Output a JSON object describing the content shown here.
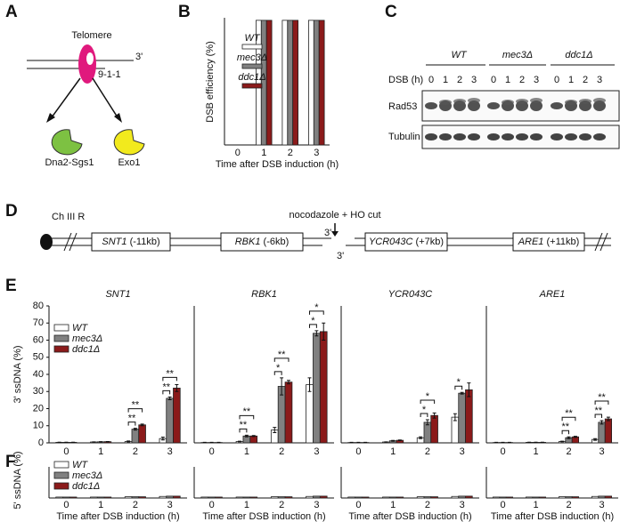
{
  "panel_labels": [
    "A",
    "B",
    "C",
    "D",
    "E",
    "F"
  ],
  "panel_a": {
    "telomere": "Telomere",
    "complex": "9-1-1",
    "end": "3'",
    "nuclease_1": "Dna2-Sgs1",
    "nuclease_2": "Exo1"
  },
  "panel_c": {
    "groups": [
      "WT",
      "mec3Δ",
      "ddc1Δ"
    ],
    "row_label": "DSB (h)",
    "lanes": [
      "0",
      "1",
      "2",
      "3",
      "0",
      "1",
      "2",
      "3",
      "0",
      "1",
      "2",
      "3"
    ],
    "blots": [
      "Rad53",
      "Tubulin"
    ]
  },
  "panel_d": {
    "chromosome": "Ch III R",
    "treatment": "nocodazole + HO cut",
    "end_left": "3'",
    "end_right": "3'",
    "genes": [
      {
        "name": "SNT1",
        "position": "(-11kb)"
      },
      {
        "name": "RBK1",
        "position": "(-6kb)"
      },
      {
        "name": "YCR043C",
        "position": "(+7kb)"
      },
      {
        "name": "ARE1",
        "position": "(+11kb)"
      }
    ]
  },
  "chart_data": [
    {
      "type": "bar",
      "ylabel": "DSB efficiency (%)",
      "xlabel": "Time after DSB induction (h)",
      "categories": [
        "0",
        "1",
        "2",
        "3"
      ],
      "ylim": [
        0,
        100
      ],
      "legend": true,
      "series": [
        {
          "name": "WT",
          "color": "#ffffff",
          "values": [
            0,
            98,
            98,
            98
          ]
        },
        {
          "name": "mec3Δ",
          "color": "#808080",
          "values": [
            0,
            98,
            98,
            98
          ]
        },
        {
          "name": "ddc1Δ",
          "color": "#8b1a1a",
          "values": [
            0,
            98,
            98,
            98
          ]
        }
      ]
    },
    {
      "type": "bar",
      "title": "SNT1",
      "ylabel": "3' ssDNA (%)",
      "categories": [
        "0",
        "1",
        "2",
        "3"
      ],
      "ylim": [
        0,
        80
      ],
      "yticks": [
        0,
        10,
        20,
        30,
        40,
        50,
        60,
        70,
        80
      ],
      "legend": true,
      "series": [
        {
          "name": "WT",
          "color": "#ffffff",
          "values": [
            0.3,
            0.5,
            0.8,
            2.5
          ],
          "errors": [
            0.1,
            0.1,
            0.3,
            0.8
          ]
        },
        {
          "name": "mec3Δ",
          "color": "#808080",
          "values": [
            0.3,
            0.6,
            8,
            26
          ],
          "errors": [
            0.1,
            0.1,
            0.5,
            0.8
          ]
        },
        {
          "name": "ddc1Δ",
          "color": "#8b1a1a",
          "values": [
            0.3,
            0.7,
            10.5,
            32
          ],
          "errors": [
            0.1,
            0.1,
            0.5,
            2
          ]
        }
      ],
      "significance": [
        {
          "category": 2,
          "from": 0,
          "to": 1,
          "label": "**"
        },
        {
          "category": 2,
          "from": 0,
          "to": 2,
          "label": "**"
        },
        {
          "category": 3,
          "from": 0,
          "to": 1,
          "label": "**"
        },
        {
          "category": 3,
          "from": 0,
          "to": 2,
          "label": "**"
        }
      ]
    },
    {
      "type": "bar",
      "title": "RBK1",
      "categories": [
        "0",
        "1",
        "2",
        "3"
      ],
      "ylim": [
        0,
        80
      ],
      "series": [
        {
          "color": "#ffffff",
          "values": [
            0.2,
            0.8,
            7.5,
            34
          ],
          "errors": [
            0.1,
            0.2,
            1.5,
            4
          ]
        },
        {
          "color": "#808080",
          "values": [
            0.2,
            4,
            33,
            64
          ],
          "errors": [
            0.1,
            0.5,
            5,
            1.5
          ]
        },
        {
          "color": "#8b1a1a",
          "values": [
            0.2,
            4,
            35.5,
            65
          ],
          "errors": [
            0.1,
            0.3,
            1,
            5
          ]
        }
      ],
      "significance": [
        {
          "category": 1,
          "from": 0,
          "to": 1,
          "label": "**"
        },
        {
          "category": 1,
          "from": 0,
          "to": 2,
          "label": "**"
        },
        {
          "category": 2,
          "from": 0,
          "to": 1,
          "label": "*"
        },
        {
          "category": 2,
          "from": 0,
          "to": 2,
          "label": "**"
        },
        {
          "category": 3,
          "from": 0,
          "to": 1,
          "label": "*"
        },
        {
          "category": 3,
          "from": 0,
          "to": 2,
          "label": "*"
        }
      ]
    },
    {
      "type": "bar",
      "title": "YCR043C",
      "categories": [
        "0",
        "1",
        "2",
        "3"
      ],
      "ylim": [
        0,
        80
      ],
      "series": [
        {
          "color": "#ffffff",
          "values": [
            0.2,
            0.5,
            3,
            15
          ],
          "errors": [
            0.1,
            0.1,
            0.5,
            2
          ]
        },
        {
          "color": "#808080",
          "values": [
            0.2,
            1.2,
            12,
            29
          ],
          "errors": [
            0.1,
            0.2,
            1.5,
            0.5
          ]
        },
        {
          "color": "#8b1a1a",
          "values": [
            0.2,
            1.5,
            16,
            31
          ],
          "errors": [
            0.1,
            0.2,
            1.5,
            4
          ]
        }
      ],
      "significance": [
        {
          "category": 2,
          "from": 0,
          "to": 1,
          "label": "*"
        },
        {
          "category": 2,
          "from": 0,
          "to": 2,
          "label": "*"
        },
        {
          "category": 3,
          "from": 0,
          "to": 1,
          "label": "*"
        }
      ]
    },
    {
      "type": "bar",
      "title": "ARE1",
      "categories": [
        "0",
        "1",
        "2",
        "3"
      ],
      "ylim": [
        0,
        80
      ],
      "series": [
        {
          "color": "#ffffff",
          "values": [
            0.2,
            0.3,
            0.8,
            2
          ],
          "errors": [
            0.1,
            0.1,
            0.2,
            0.5
          ]
        },
        {
          "color": "#808080",
          "values": [
            0.2,
            0.3,
            3,
            12
          ],
          "errors": [
            0.1,
            0.1,
            0.5,
            1
          ]
        },
        {
          "color": "#8b1a1a",
          "values": [
            0.2,
            0.3,
            3.5,
            14
          ],
          "errors": [
            0.1,
            0.1,
            0.3,
            1
          ]
        }
      ],
      "significance": [
        {
          "category": 2,
          "from": 0,
          "to": 1,
          "label": "**"
        },
        {
          "category": 2,
          "from": 0,
          "to": 2,
          "label": "**"
        },
        {
          "category": 3,
          "from": 0,
          "to": 1,
          "label": "**"
        },
        {
          "category": 3,
          "from": 0,
          "to": 2,
          "label": "**"
        }
      ]
    },
    {
      "type": "bar",
      "ylabel": "5' ssDNA (%)",
      "xlabel": "Time after DSB induction (h)",
      "categories": [
        "0",
        "1",
        "2",
        "3"
      ],
      "ylim": [
        0,
        10
      ],
      "legend": true,
      "series": [
        {
          "name": "WT",
          "color": "#ffffff",
          "values": [
            0.3,
            0.3,
            0.4,
            0.5
          ]
        },
        {
          "name": "mec3Δ",
          "color": "#808080",
          "values": [
            0.3,
            0.3,
            0.4,
            0.6
          ]
        },
        {
          "name": "ddc1Δ",
          "color": "#8b1a1a",
          "values": [
            0.3,
            0.3,
            0.4,
            0.6
          ]
        }
      ]
    },
    {
      "type": "bar",
      "xlabel": "Time after DSB induction (h)",
      "categories": [
        "0",
        "1",
        "2",
        "3"
      ],
      "ylim": [
        0,
        10
      ],
      "series": [
        {
          "color": "#ffffff",
          "values": [
            0.3,
            0.3,
            0.4,
            0.5
          ]
        },
        {
          "color": "#808080",
          "values": [
            0.3,
            0.3,
            0.4,
            0.6
          ]
        },
        {
          "color": "#8b1a1a",
          "values": [
            0.3,
            0.3,
            0.4,
            0.6
          ]
        }
      ]
    },
    {
      "type": "bar",
      "xlabel": "Time after DSB induction (h)",
      "categories": [
        "0",
        "1",
        "2",
        "3"
      ],
      "ylim": [
        0,
        10
      ],
      "series": [
        {
          "color": "#ffffff",
          "values": [
            0.3,
            0.3,
            0.4,
            0.5
          ]
        },
        {
          "color": "#808080",
          "values": [
            0.3,
            0.3,
            0.4,
            0.6
          ]
        },
        {
          "color": "#8b1a1a",
          "values": [
            0.3,
            0.3,
            0.4,
            0.6
          ]
        }
      ]
    },
    {
      "type": "bar",
      "xlabel": "Time after DSB induction (h)",
      "categories": [
        "0",
        "1",
        "2",
        "3"
      ],
      "ylim": [
        0,
        10
      ],
      "series": [
        {
          "color": "#ffffff",
          "values": [
            0.3,
            0.3,
            0.4,
            0.5
          ]
        },
        {
          "color": "#808080",
          "values": [
            0.3,
            0.3,
            0.4,
            0.6
          ]
        },
        {
          "color": "#8b1a1a",
          "values": [
            0.3,
            0.3,
            0.4,
            0.6
          ]
        }
      ]
    }
  ]
}
